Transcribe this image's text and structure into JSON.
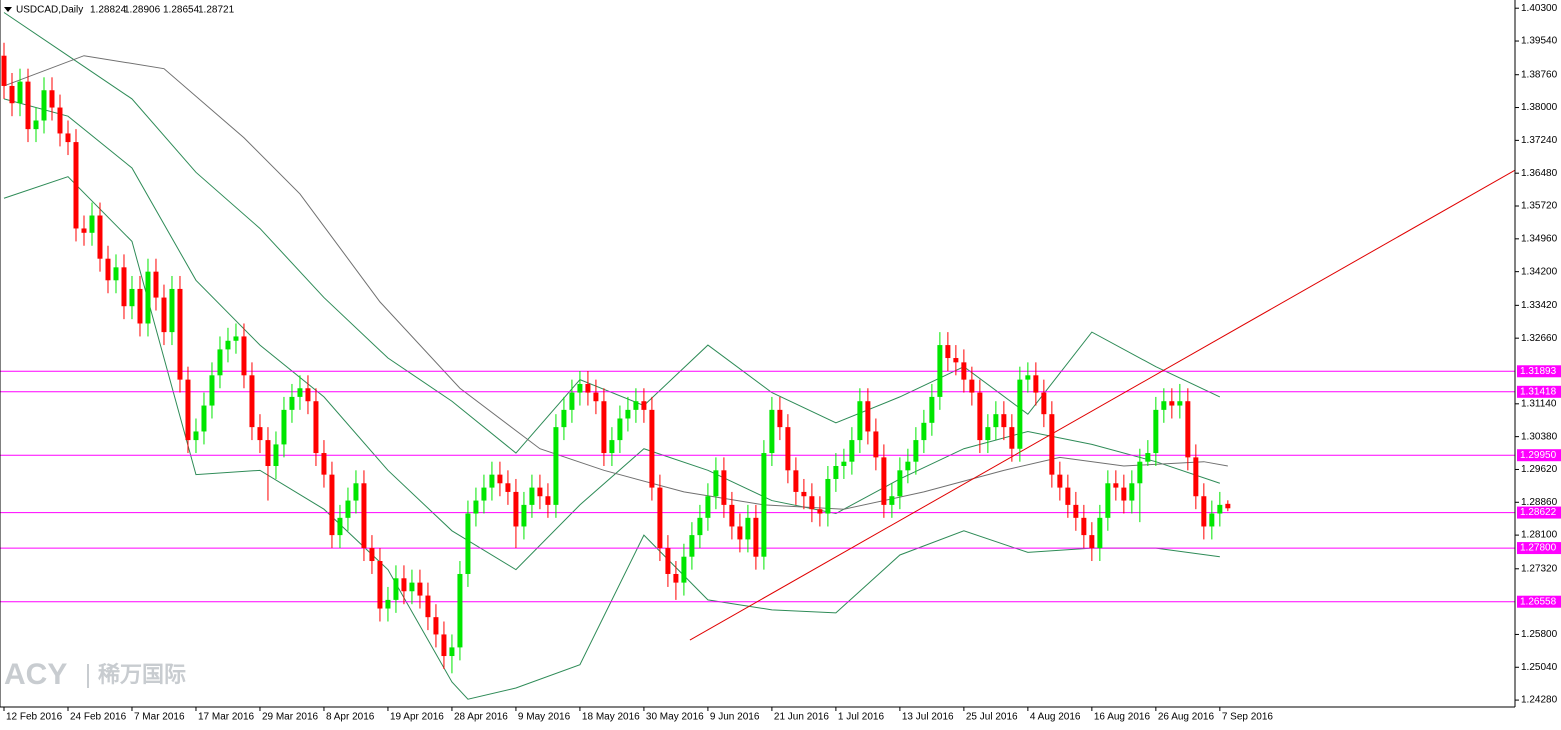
{
  "chart_data": {
    "type": "candlestick",
    "title": "USDCAD,Daily",
    "watermark": {
      "brand": "ACY",
      "name": "稀万国际"
    },
    "categories": [
      "12 Feb 2016",
      null,
      null,
      null,
      null,
      null,
      null,
      null,
      "24 Feb 2016",
      null,
      null,
      null,
      null,
      null,
      null,
      null,
      "7 Mar 2016",
      null,
      null,
      null,
      null,
      null,
      null,
      null,
      "17 Mar 2016",
      null,
      null,
      null,
      null,
      null,
      null,
      null,
      "29 Mar 2016",
      null,
      null,
      null,
      null,
      null,
      null,
      null,
      "8 Apr 2016",
      null,
      null,
      null,
      null,
      null,
      null,
      null,
      "19 Apr 2016",
      null,
      null,
      null,
      null,
      null,
      null,
      null,
      "28 Apr 2016",
      null,
      null,
      null,
      null,
      null,
      null,
      null,
      "9 May 2016",
      null,
      null,
      null,
      null,
      null,
      null,
      null,
      "18 May 2016",
      null,
      null,
      null,
      null,
      null,
      null,
      null,
      "30 May 2016",
      null,
      null,
      null,
      null,
      null,
      null,
      null,
      "9 Jun 2016",
      null,
      null,
      null,
      null,
      null,
      null,
      null,
      "21 Jun 2016",
      null,
      null,
      null,
      null,
      null,
      null,
      null,
      "1 Jul 2016",
      null,
      null,
      null,
      null,
      null,
      null,
      null,
      "13 Jul 2016",
      null,
      null,
      null,
      null,
      null,
      null,
      null,
      "25 Jul 2016",
      null,
      null,
      null,
      null,
      null,
      null,
      null,
      "4 Aug 2016",
      null,
      null,
      null,
      null,
      null,
      null,
      null,
      "16 Aug 2016",
      null,
      null,
      null,
      null,
      null,
      null,
      null,
      "26 Aug 2016",
      null,
      null,
      null,
      null,
      null,
      null,
      null,
      "7 Sep 2016",
      null
    ],
    "open": [
      1.392,
      1.385,
      1.381,
      1.386,
      1.375,
      1.377,
      1.384,
      1.38,
      1.374,
      1.372,
      1.352,
      1.351,
      1.355,
      1.345,
      1.34,
      1.343,
      1.334,
      1.338,
      1.33,
      1.342,
      1.336,
      1.328,
      1.338,
      1.317,
      1.303,
      1.305,
      1.311,
      1.318,
      1.324,
      1.326,
      1.327,
      1.318,
      1.306,
      1.303,
      1.297,
      1.302,
      1.31,
      1.313,
      1.315,
      1.312,
      1.3,
      1.295,
      1.281,
      1.285,
      1.289,
      1.293,
      1.278,
      1.275,
      1.264,
      1.266,
      1.271,
      1.268,
      1.27,
      1.267,
      1.262,
      1.258,
      1.253,
      1.255,
      1.272,
      1.286,
      1.289,
      1.292,
      1.295,
      1.293,
      1.291,
      1.283,
      1.288,
      1.292,
      1.29,
      1.288,
      1.306,
      1.31,
      1.314,
      1.316,
      1.314,
      1.312,
      1.3,
      1.303,
      1.308,
      1.31,
      1.312,
      1.31,
      1.292,
      1.278,
      1.272,
      1.27,
      1.276,
      1.281,
      1.285,
      1.29,
      1.296,
      1.288,
      1.283,
      1.28,
      1.285,
      1.276,
      1.3,
      1.31,
      1.306,
      1.296,
      1.291,
      1.29,
      1.287,
      1.286,
      1.294,
      1.297,
      1.298,
      1.303,
      1.312,
      1.305,
      1.299,
      1.288,
      1.29,
      1.296,
      1.298,
      1.303,
      1.307,
      1.313,
      1.325,
      1.322,
      1.321,
      1.317,
      1.314,
      1.303,
      1.306,
      1.309,
      1.306,
      1.301,
      1.317,
      1.318,
      1.314,
      1.309,
      1.295,
      1.292,
      1.288,
      1.285,
      1.281,
      1.278,
      1.285,
      1.293,
      1.292,
      1.289,
      1.293,
      1.298,
      1.3,
      1.31,
      1.312,
      1.311,
      1.312,
      1.299,
      1.29,
      1.283,
      1.286,
      1.28824
    ],
    "high": [
      1.395,
      1.388,
      1.389,
      1.389,
      1.38,
      1.387,
      1.387,
      1.383,
      1.377,
      1.375,
      1.355,
      1.358,
      1.358,
      1.348,
      1.346,
      1.346,
      1.341,
      1.341,
      1.345,
      1.345,
      1.339,
      1.341,
      1.341,
      1.32,
      1.308,
      1.314,
      1.321,
      1.327,
      1.329,
      1.33,
      1.33,
      1.321,
      1.309,
      1.306,
      1.305,
      1.313,
      1.316,
      1.318,
      1.318,
      1.315,
      1.303,
      1.298,
      1.288,
      1.292,
      1.296,
      1.296,
      1.281,
      1.278,
      1.269,
      1.274,
      1.274,
      1.273,
      1.273,
      1.27,
      1.265,
      1.261,
      1.258,
      1.275,
      1.289,
      1.292,
      1.295,
      1.298,
      1.298,
      1.296,
      1.294,
      1.291,
      1.295,
      1.295,
      1.293,
      1.309,
      1.313,
      1.317,
      1.319,
      1.319,
      1.317,
      1.315,
      1.306,
      1.311,
      1.313,
      1.315,
      1.315,
      1.313,
      1.295,
      1.281,
      1.275,
      1.279,
      1.284,
      1.288,
      1.293,
      1.299,
      1.299,
      1.291,
      1.286,
      1.288,
      1.288,
      1.303,
      1.313,
      1.313,
      1.309,
      1.299,
      1.294,
      1.293,
      1.29,
      1.297,
      1.3,
      1.301,
      1.306,
      1.315,
      1.315,
      1.308,
      1.302,
      1.293,
      1.299,
      1.301,
      1.306,
      1.31,
      1.316,
      1.328,
      1.328,
      1.325,
      1.324,
      1.32,
      1.317,
      1.309,
      1.312,
      1.312,
      1.309,
      1.32,
      1.321,
      1.321,
      1.317,
      1.312,
      1.298,
      1.295,
      1.291,
      1.288,
      1.284,
      1.288,
      1.296,
      1.296,
      1.295,
      1.296,
      1.301,
      1.303,
      1.313,
      1.315,
      1.315,
      1.316,
      1.315,
      1.302,
      1.293,
      1.289,
      1.291,
      1.28906
    ],
    "low": [
      1.382,
      1.378,
      1.378,
      1.372,
      1.372,
      1.374,
      1.377,
      1.371,
      1.369,
      1.349,
      1.348,
      1.348,
      1.342,
      1.337,
      1.337,
      1.331,
      1.331,
      1.327,
      1.327,
      1.333,
      1.325,
      1.325,
      1.314,
      1.3,
      1.3,
      1.302,
      1.308,
      1.315,
      1.321,
      1.323,
      1.315,
      1.303,
      1.3,
      1.289,
      1.294,
      1.299,
      1.307,
      1.31,
      1.309,
      1.297,
      1.292,
      1.278,
      1.278,
      1.282,
      1.286,
      1.275,
      1.272,
      1.261,
      1.261,
      1.263,
      1.265,
      1.265,
      1.264,
      1.259,
      1.255,
      1.25,
      1.249,
      1.252,
      1.269,
      1.283,
      1.286,
      1.289,
      1.29,
      1.288,
      1.278,
      1.28,
      1.285,
      1.287,
      1.285,
      1.285,
      1.303,
      1.307,
      1.311,
      1.311,
      1.309,
      1.297,
      1.297,
      1.3,
      1.305,
      1.307,
      1.307,
      1.289,
      1.275,
      1.269,
      1.266,
      1.267,
      1.273,
      1.278,
      1.282,
      1.287,
      1.285,
      1.28,
      1.277,
      1.277,
      1.273,
      1.273,
      1.297,
      1.303,
      1.293,
      1.288,
      1.287,
      1.284,
      1.283,
      1.283,
      1.291,
      1.294,
      1.295,
      1.3,
      1.302,
      1.296,
      1.285,
      1.285,
      1.287,
      1.293,
      1.295,
      1.3,
      1.304,
      1.31,
      1.319,
      1.318,
      1.314,
      1.311,
      1.3,
      1.3,
      1.303,
      1.303,
      1.298,
      1.298,
      1.314,
      1.311,
      1.306,
      1.292,
      1.289,
      1.285,
      1.282,
      1.278,
      1.275,
      1.275,
      1.282,
      1.289,
      1.286,
      1.286,
      1.284,
      1.297,
      1.297,
      1.307,
      1.308,
      1.308,
      1.296,
      1.287,
      1.28,
      1.28,
      1.283,
      1.28654
    ],
    "close": [
      1.385,
      1.381,
      1.386,
      1.375,
      1.377,
      1.384,
      1.38,
      1.374,
      1.372,
      1.352,
      1.351,
      1.355,
      1.345,
      1.34,
      1.343,
      1.334,
      1.338,
      1.33,
      1.342,
      1.336,
      1.328,
      1.338,
      1.317,
      1.303,
      1.305,
      1.311,
      1.318,
      1.324,
      1.326,
      1.327,
      1.318,
      1.306,
      1.303,
      1.297,
      1.302,
      1.31,
      1.313,
      1.315,
      1.312,
      1.3,
      1.295,
      1.281,
      1.285,
      1.289,
      1.293,
      1.278,
      1.275,
      1.264,
      1.266,
      1.271,
      1.268,
      1.27,
      1.267,
      1.262,
      1.258,
      1.253,
      1.255,
      1.272,
      1.286,
      1.289,
      1.292,
      1.295,
      1.293,
      1.291,
      1.283,
      1.288,
      1.292,
      1.29,
      1.288,
      1.306,
      1.31,
      1.314,
      1.316,
      1.314,
      1.312,
      1.3,
      1.303,
      1.308,
      1.31,
      1.312,
      1.31,
      1.292,
      1.278,
      1.272,
      1.27,
      1.276,
      1.281,
      1.285,
      1.29,
      1.296,
      1.288,
      1.283,
      1.28,
      1.285,
      1.276,
      1.3,
      1.31,
      1.306,
      1.296,
      1.291,
      1.29,
      1.287,
      1.286,
      1.294,
      1.297,
      1.298,
      1.303,
      1.312,
      1.305,
      1.299,
      1.288,
      1.29,
      1.296,
      1.298,
      1.303,
      1.307,
      1.313,
      1.325,
      1.322,
      1.321,
      1.317,
      1.314,
      1.303,
      1.306,
      1.309,
      1.306,
      1.301,
      1.317,
      1.318,
      1.314,
      1.309,
      1.295,
      1.292,
      1.288,
      1.285,
      1.281,
      1.278,
      1.285,
      1.293,
      1.292,
      1.289,
      1.293,
      1.298,
      1.3,
      1.31,
      1.312,
      1.311,
      1.312,
      1.299,
      1.29,
      1.283,
      1.286,
      1.288,
      1.28721
    ],
    "up_color": "#00e600",
    "down_color": "#ff0000",
    "indicators": [
      {
        "color": "#2e8b57",
        "x": [
          0,
          8,
          16,
          24,
          32,
          40,
          48,
          56,
          64,
          72,
          80,
          88,
          96,
          104,
          112,
          120,
          128,
          136,
          144,
          152
        ],
        "values": [
          1.402,
          1.392,
          1.382,
          1.365,
          1.352,
          1.336,
          1.322,
          1.312,
          1.3,
          1.317,
          1.311,
          1.325,
          1.314,
          1.307,
          1.313,
          1.32,
          1.309,
          1.328,
          1.32,
          1.313
        ]
      },
      {
        "color": "#2e8b57",
        "x": [
          0,
          8,
          16,
          24,
          32,
          40,
          48,
          56,
          64,
          72,
          80,
          88,
          96,
          104,
          112,
          120,
          128,
          136,
          144,
          152
        ],
        "values": [
          1.382,
          1.378,
          1.366,
          1.34,
          1.325,
          1.313,
          1.296,
          1.282,
          1.273,
          1.288,
          1.301,
          1.296,
          1.289,
          1.286,
          1.294,
          1.301,
          1.305,
          1.302,
          1.298,
          1.293
        ]
      },
      {
        "color": "#2e8b57",
        "x": [
          0,
          8,
          16,
          24,
          32,
          40,
          48,
          56,
          58,
          64,
          72,
          80,
          88,
          96,
          104,
          112,
          120,
          128,
          136,
          144,
          152
        ],
        "values": [
          1.359,
          1.364,
          1.349,
          1.295,
          1.296,
          1.287,
          1.273,
          1.247,
          1.243,
          1.2456,
          1.251,
          1.281,
          1.266,
          1.2637,
          1.263,
          1.2764,
          1.282,
          1.277,
          1.278,
          1.278,
          1.276
        ]
      },
      {
        "color": "#707070",
        "x": [
          0,
          10,
          20,
          30,
          37,
          47,
          57,
          67,
          75,
          85,
          95,
          105,
          115,
          125,
          132,
          140,
          150,
          153
        ],
        "values": [
          1.385,
          1.392,
          1.389,
          1.373,
          1.36,
          1.335,
          1.315,
          1.301,
          1.296,
          1.291,
          1.288,
          1.287,
          1.291,
          1.296,
          1.299,
          1.297,
          1.298,
          1.297
        ]
      }
    ],
    "trendline": {
      "color": "#e00000",
      "x": [
        85.75,
        188.9
      ],
      "values": [
        1.2567,
        1.3655
      ]
    },
    "level_color": "#ff00ff",
    "levels": [
      {
        "value": 1.31893,
        "label": "1.31893"
      },
      {
        "value": 1.31418,
        "label": "1.31418"
      },
      {
        "value": 1.2995,
        "label": "1.29950"
      },
      {
        "value": 1.28622,
        "label": "1.28622"
      },
      {
        "value": 1.278,
        "label": "1.27800"
      },
      {
        "value": 1.26558,
        "label": "1.26558"
      }
    ],
    "xlim": [
      -0.5,
      188.9
    ],
    "ylim": [
      1.2412,
      1.4049
    ],
    "yticks": [
      {
        "value": 1.403,
        "label": "1.40300"
      },
      {
        "value": 1.3954,
        "label": "1.39540"
      },
      {
        "value": 1.3876,
        "label": "1.38760"
      },
      {
        "value": 1.38,
        "label": "1.38000"
      },
      {
        "value": 1.3724,
        "label": "1.37240"
      },
      {
        "value": 1.3648,
        "label": "1.36480"
      },
      {
        "value": 1.3572,
        "label": "1.35720"
      },
      {
        "value": 1.3496,
        "label": "1.34960"
      },
      {
        "value": 1.342,
        "label": "1.34200"
      },
      {
        "value": 1.3342,
        "label": "1.33420"
      },
      {
        "value": 1.3266,
        "label": "1.32660"
      },
      {
        "value": 1.3114,
        "label": "1.31140"
      },
      {
        "value": 1.3038,
        "label": "1.30380"
      },
      {
        "value": 1.2962,
        "label": "1.29620"
      },
      {
        "value": 1.2886,
        "label": "1.28860"
      },
      {
        "value": 1.281,
        "label": "1.28100"
      },
      {
        "value": 1.2732,
        "label": "1.27320"
      },
      {
        "value": 1.258,
        "label": "1.25800"
      },
      {
        "value": 1.2504,
        "label": "1.25040"
      },
      {
        "value": 1.2428,
        "label": "1.24280"
      }
    ]
  }
}
